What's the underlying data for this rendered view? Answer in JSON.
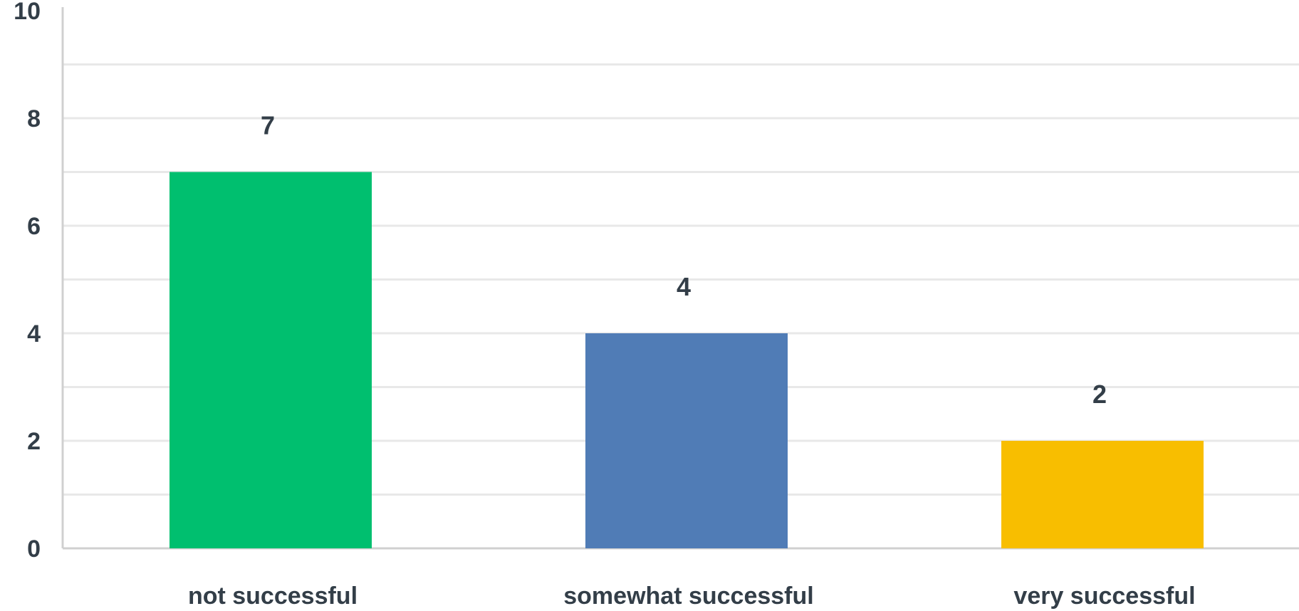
{
  "chart_data": {
    "type": "bar",
    "title": "",
    "xlabel": "",
    "ylabel": "",
    "categories": [
      "not successful",
      "somewhat successful",
      "very successful"
    ],
    "values": [
      7,
      4,
      2
    ],
    "data_labels": [
      "7",
      "4",
      "2"
    ],
    "colors": [
      "#00bf6f",
      "#507cb6",
      "#f8be00"
    ],
    "ylim": [
      0,
      10
    ],
    "yticks": [
      0,
      2,
      4,
      6,
      8,
      10
    ],
    "ytick_labels": [
      "0",
      "2",
      "4",
      "6",
      "8",
      "10"
    ],
    "grid": true,
    "grid_step": 1,
    "grid_color": "#e8e8e8",
    "axis_color": "#d0d0d0",
    "text_color": "#333e48",
    "legend": "none"
  }
}
